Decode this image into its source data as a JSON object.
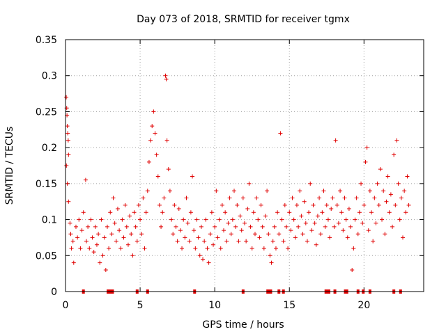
{
  "chart_data": {
    "type": "scatter",
    "title": "Day 073 of 2018, SRMTID for receiver tgmx",
    "xlabel": "GPS time / hours",
    "ylabel": "SRMTID / TECUs",
    "xlim": [
      0,
      24
    ],
    "ylim": [
      0,
      0.35
    ],
    "xticks": [
      0,
      5,
      10,
      15,
      20
    ],
    "xtick_labels": [
      "0",
      "5",
      "10",
      "15",
      "20"
    ],
    "yticks": [
      0,
      0.05,
      0.1,
      0.15,
      0.2,
      0.25,
      0.3,
      0.35
    ],
    "ytick_labels": [
      "0",
      "0.05",
      "0.1",
      "0.15",
      "0.2",
      "0.25",
      "0.3",
      "0.35"
    ],
    "grid": true,
    "marker": "plus",
    "color": "#e00000",
    "series": [
      {
        "name": "SRMTID",
        "points": [
          [
            0.05,
            0.27
          ],
          [
            0.08,
            0.255
          ],
          [
            0.1,
            0.245
          ],
          [
            0.12,
            0.23
          ],
          [
            0.15,
            0.22
          ],
          [
            0.18,
            0.21
          ],
          [
            0.2,
            0.19
          ],
          [
            0.06,
            0.175
          ],
          [
            0.12,
            0.15
          ],
          [
            0.2,
            0.125
          ],
          [
            0.3,
            0.095
          ],
          [
            0.35,
            0.08
          ],
          [
            0.4,
            0.06
          ],
          [
            0.5,
            0.07
          ],
          [
            0.55,
            0.04
          ],
          [
            0.7,
            0.09
          ],
          [
            0.8,
            0.075
          ],
          [
            0.9,
            0.1
          ],
          [
            1.0,
            0.06
          ],
          [
            1.1,
            0.085
          ],
          [
            1.2,
            0.11
          ],
          [
            1.35,
            0.155
          ],
          [
            1.4,
            0.07
          ],
          [
            1.5,
            0.09
          ],
          [
            1.6,
            0.06
          ],
          [
            1.7,
            0.1
          ],
          [
            1.8,
            0.075
          ],
          [
            1.9,
            0.055
          ],
          [
            2.0,
            0.09
          ],
          [
            2.1,
            0.065
          ],
          [
            2.2,
            0.08
          ],
          [
            2.3,
            0.04
          ],
          [
            2.4,
            0.1
          ],
          [
            2.5,
            0.05
          ],
          [
            2.6,
            0.075
          ],
          [
            2.7,
            0.03
          ],
          [
            2.8,
            0.09
          ],
          [
            2.9,
            0.06
          ],
          [
            3.0,
            0.11
          ],
          [
            3.1,
            0.08
          ],
          [
            3.2,
            0.13
          ],
          [
            3.3,
            0.095
          ],
          [
            3.4,
            0.07
          ],
          [
            3.5,
            0.115
          ],
          [
            3.6,
            0.085
          ],
          [
            3.7,
            0.06
          ],
          [
            3.8,
            0.1
          ],
          [
            3.9,
            0.075
          ],
          [
            4.0,
            0.12
          ],
          [
            4.1,
            0.09
          ],
          [
            4.2,
            0.065
          ],
          [
            4.3,
            0.105
          ],
          [
            4.4,
            0.08
          ],
          [
            4.5,
            0.05
          ],
          [
            4.6,
            0.11
          ],
          [
            4.7,
            0.09
          ],
          [
            4.8,
            0.07
          ],
          [
            4.9,
            0.12
          ],
          [
            5.0,
            0.1
          ],
          [
            5.1,
            0.08
          ],
          [
            5.2,
            0.13
          ],
          [
            5.3,
            0.06
          ],
          [
            5.4,
            0.11
          ],
          [
            5.5,
            0.14
          ],
          [
            5.6,
            0.18
          ],
          [
            5.7,
            0.21
          ],
          [
            5.8,
            0.23
          ],
          [
            5.9,
            0.25
          ],
          [
            6.0,
            0.22
          ],
          [
            6.1,
            0.19
          ],
          [
            6.2,
            0.16
          ],
          [
            6.3,
            0.12
          ],
          [
            6.4,
            0.09
          ],
          [
            6.5,
            0.11
          ],
          [
            6.6,
            0.13
          ],
          [
            6.7,
            0.3
          ],
          [
            6.75,
            0.295
          ],
          [
            6.8,
            0.21
          ],
          [
            6.9,
            0.17
          ],
          [
            7.0,
            0.14
          ],
          [
            7.1,
            0.1
          ],
          [
            7.2,
            0.08
          ],
          [
            7.3,
            0.12
          ],
          [
            7.4,
            0.09
          ],
          [
            7.5,
            0.07
          ],
          [
            7.6,
            0.115
          ],
          [
            7.7,
            0.085
          ],
          [
            7.8,
            0.06
          ],
          [
            7.9,
            0.1
          ],
          [
            8.0,
            0.075
          ],
          [
            8.1,
            0.13
          ],
          [
            8.2,
            0.095
          ],
          [
            8.3,
            0.07
          ],
          [
            8.4,
            0.11
          ],
          [
            8.5,
            0.16
          ],
          [
            8.6,
            0.085
          ],
          [
            8.7,
            0.06
          ],
          [
            8.8,
            0.1
          ],
          [
            8.9,
            0.075
          ],
          [
            9.0,
            0.05
          ],
          [
            9.1,
            0.09
          ],
          [
            9.2,
            0.045
          ],
          [
            9.3,
            0.07
          ],
          [
            9.4,
            0.1
          ],
          [
            9.5,
            0.06
          ],
          [
            9.6,
            0.04
          ],
          [
            9.7,
            0.08
          ],
          [
            9.8,
            0.11
          ],
          [
            9.9,
            0.065
          ],
          [
            10.0,
            0.09
          ],
          [
            10.1,
            0.14
          ],
          [
            10.2,
            0.075
          ],
          [
            10.3,
            0.1
          ],
          [
            10.4,
            0.06
          ],
          [
            10.5,
            0.12
          ],
          [
            10.6,
            0.085
          ],
          [
            10.7,
            0.11
          ],
          [
            10.8,
            0.07
          ],
          [
            10.9,
            0.095
          ],
          [
            11.0,
            0.13
          ],
          [
            11.1,
            0.08
          ],
          [
            11.2,
            0.1
          ],
          [
            11.3,
            0.14
          ],
          [
            11.4,
            0.09
          ],
          [
            11.5,
            0.12
          ],
          [
            11.6,
            0.07
          ],
          [
            11.7,
            0.105
          ],
          [
            11.8,
            0.085
          ],
          [
            11.9,
            0.13
          ],
          [
            12.0,
            0.095
          ],
          [
            12.1,
            0.07
          ],
          [
            12.2,
            0.115
          ],
          [
            12.3,
            0.15
          ],
          [
            12.4,
            0.09
          ],
          [
            12.5,
            0.06
          ],
          [
            12.6,
            0.11
          ],
          [
            12.7,
            0.08
          ],
          [
            12.8,
            0.13
          ],
          [
            12.9,
            0.1
          ],
          [
            13.0,
            0.075
          ],
          [
            13.1,
            0.12
          ],
          [
            13.2,
            0.09
          ],
          [
            13.3,
            0.06
          ],
          [
            13.4,
            0.105
          ],
          [
            13.5,
            0.14
          ],
          [
            13.6,
            0.08
          ],
          [
            13.7,
            0.05
          ],
          [
            13.8,
            0.04
          ],
          [
            13.9,
            0.07
          ],
          [
            14.0,
            0.09
          ],
          [
            14.1,
            0.06
          ],
          [
            14.2,
            0.11
          ],
          [
            14.3,
            0.08
          ],
          [
            14.4,
            0.22
          ],
          [
            14.5,
            0.1
          ],
          [
            14.6,
            0.07
          ],
          [
            14.7,
            0.12
          ],
          [
            14.8,
            0.09
          ],
          [
            14.9,
            0.06
          ],
          [
            15.0,
            0.11
          ],
          [
            15.1,
            0.085
          ],
          [
            15.2,
            0.13
          ],
          [
            15.3,
            0.1
          ],
          [
            15.4,
            0.075
          ],
          [
            15.5,
            0.12
          ],
          [
            15.6,
            0.09
          ],
          [
            15.7,
            0.14
          ],
          [
            15.8,
            0.105
          ],
          [
            15.9,
            0.08
          ],
          [
            16.0,
            0.125
          ],
          [
            16.1,
            0.095
          ],
          [
            16.2,
            0.07
          ],
          [
            16.3,
            0.11
          ],
          [
            16.4,
            0.15
          ],
          [
            16.5,
            0.085
          ],
          [
            16.6,
            0.12
          ],
          [
            16.7,
            0.095
          ],
          [
            16.8,
            0.065
          ],
          [
            16.9,
            0.105
          ],
          [
            17.0,
            0.13
          ],
          [
            17.1,
            0.08
          ],
          [
            17.2,
            0.11
          ],
          [
            17.3,
            0.14
          ],
          [
            17.4,
            0.09
          ],
          [
            17.5,
            0.12
          ],
          [
            17.6,
            0.1
          ],
          [
            17.7,
            0.075
          ],
          [
            17.8,
            0.115
          ],
          [
            17.9,
            0.13
          ],
          [
            18.0,
            0.09
          ],
          [
            18.1,
            0.21
          ],
          [
            18.2,
            0.12
          ],
          [
            18.3,
            0.095
          ],
          [
            18.4,
            0.14
          ],
          [
            18.5,
            0.11
          ],
          [
            18.6,
            0.085
          ],
          [
            18.7,
            0.13
          ],
          [
            18.8,
            0.1
          ],
          [
            18.9,
            0.075
          ],
          [
            19.0,
            0.115
          ],
          [
            19.1,
            0.09
          ],
          [
            19.2,
            0.03
          ],
          [
            19.3,
            0.06
          ],
          [
            19.4,
            0.1
          ],
          [
            19.5,
            0.13
          ],
          [
            19.6,
            0.08
          ],
          [
            19.7,
            0.11
          ],
          [
            19.8,
            0.15
          ],
          [
            19.9,
            0.095
          ],
          [
            20.0,
            0.12
          ],
          [
            20.1,
            0.18
          ],
          [
            20.2,
            0.2
          ],
          [
            20.3,
            0.085
          ],
          [
            20.4,
            0.14
          ],
          [
            20.5,
            0.11
          ],
          [
            20.6,
            0.07
          ],
          [
            20.7,
            0.13
          ],
          [
            20.8,
            0.095
          ],
          [
            20.9,
            0.15
          ],
          [
            21.0,
            0.12
          ],
          [
            21.1,
            0.17
          ],
          [
            21.2,
            0.1
          ],
          [
            21.3,
            0.14
          ],
          [
            21.4,
            0.08
          ],
          [
            21.5,
            0.125
          ],
          [
            21.6,
            0.16
          ],
          [
            21.7,
            0.11
          ],
          [
            21.8,
            0.135
          ],
          [
            21.9,
            0.09
          ],
          [
            22.0,
            0.19
          ],
          [
            22.1,
            0.12
          ],
          [
            22.2,
            0.21
          ],
          [
            22.3,
            0.15
          ],
          [
            22.4,
            0.1
          ],
          [
            22.5,
            0.13
          ],
          [
            22.6,
            0.075
          ],
          [
            22.7,
            0.14
          ],
          [
            22.8,
            0.11
          ],
          [
            22.9,
            0.16
          ],
          [
            23.0,
            0.12
          ]
        ]
      }
    ],
    "zero_markers_x": [
      1.2,
      2.85,
      2.95,
      3.05,
      3.15,
      4.8,
      5.5,
      8.65,
      11.9,
      13.55,
      13.65,
      13.75,
      14.3,
      14.6,
      17.45,
      17.55,
      17.65,
      18.05,
      18.75,
      18.85,
      19.6,
      19.95,
      20.4,
      22.0,
      22.45
    ]
  }
}
